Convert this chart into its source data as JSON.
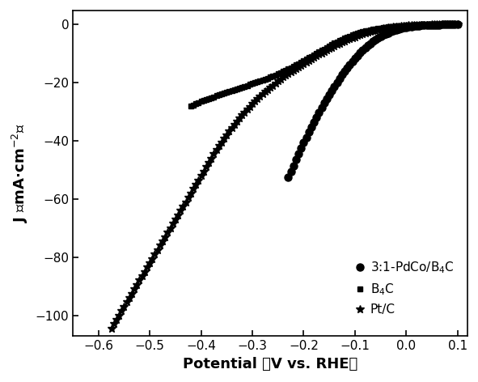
{
  "xlabel": "Potential （V vs. RHE）",
  "ylabel": "J （mA·cm⁻²）",
  "xlim": [
    -0.65,
    0.12
  ],
  "ylim": [
    -107,
    5
  ],
  "xticks": [
    -0.6,
    -0.5,
    -0.4,
    -0.3,
    -0.2,
    -0.1,
    0.0,
    0.1
  ],
  "yticks": [
    0,
    -20,
    -40,
    -60,
    -80,
    -100
  ],
  "background_color": "#ffffff",
  "series": [
    {
      "label": "3:1-PdCo/B$_4$C",
      "marker": "o",
      "markersize": 6.5,
      "color": "#000000",
      "x": [
        -0.23,
        -0.225,
        -0.22,
        -0.215,
        -0.21,
        -0.205,
        -0.2,
        -0.195,
        -0.19,
        -0.185,
        -0.18,
        -0.175,
        -0.17,
        -0.165,
        -0.16,
        -0.155,
        -0.15,
        -0.145,
        -0.14,
        -0.135,
        -0.13,
        -0.125,
        -0.12,
        -0.115,
        -0.11,
        -0.105,
        -0.1,
        -0.095,
        -0.09,
        -0.085,
        -0.08,
        -0.075,
        -0.07,
        -0.065,
        -0.06,
        -0.055,
        -0.05,
        -0.045,
        -0.04,
        -0.035,
        -0.03,
        -0.025,
        -0.02,
        -0.015,
        -0.01,
        -0.005,
        0.0,
        0.005,
        0.01,
        0.015,
        0.02,
        0.025,
        0.03,
        0.035,
        0.04,
        0.045,
        0.05,
        0.055,
        0.06,
        0.065,
        0.07,
        0.075,
        0.08,
        0.085,
        0.09,
        0.095,
        0.1
      ],
      "y": [
        -52.5,
        -50.5,
        -48.5,
        -46.5,
        -44.5,
        -42.5,
        -40.5,
        -38.8,
        -37.0,
        -35.2,
        -33.5,
        -31.8,
        -30.2,
        -28.6,
        -27.0,
        -25.5,
        -24.0,
        -22.6,
        -21.2,
        -19.8,
        -18.5,
        -17.2,
        -16.0,
        -14.8,
        -13.7,
        -12.6,
        -11.6,
        -10.6,
        -9.7,
        -8.8,
        -8.0,
        -7.2,
        -6.5,
        -5.8,
        -5.2,
        -4.6,
        -4.1,
        -3.6,
        -3.2,
        -2.8,
        -2.4,
        -2.1,
        -1.8,
        -1.5,
        -1.3,
        -1.1,
        -0.9,
        -0.75,
        -0.62,
        -0.51,
        -0.41,
        -0.33,
        -0.26,
        -0.2,
        -0.15,
        -0.11,
        -0.08,
        -0.05,
        -0.03,
        -0.02,
        -0.01,
        -0.01,
        0.0,
        0.0,
        0.0,
        0.0,
        0.0
      ]
    },
    {
      "label": "B$_4$C",
      "marker": "s",
      "markersize": 5,
      "color": "#000000",
      "x": [
        -0.42,
        -0.415,
        -0.41,
        -0.405,
        -0.4,
        -0.395,
        -0.39,
        -0.385,
        -0.38,
        -0.375,
        -0.37,
        -0.365,
        -0.36,
        -0.355,
        -0.35,
        -0.345,
        -0.34,
        -0.335,
        -0.33,
        -0.325,
        -0.32,
        -0.315,
        -0.31,
        -0.305,
        -0.3,
        -0.295,
        -0.29,
        -0.285,
        -0.28,
        -0.275,
        -0.27,
        -0.265,
        -0.26,
        -0.255,
        -0.25,
        -0.245,
        -0.24,
        -0.235,
        -0.23,
        -0.225,
        -0.22,
        -0.215,
        -0.21,
        -0.205,
        -0.2,
        -0.195,
        -0.19,
        -0.185,
        -0.18,
        -0.175,
        -0.17,
        -0.165,
        -0.16,
        -0.155,
        -0.15,
        -0.145,
        -0.14,
        -0.135,
        -0.13,
        -0.125,
        -0.12,
        -0.115,
        -0.11,
        -0.105,
        -0.1,
        -0.095,
        -0.09,
        -0.085,
        -0.08,
        -0.075,
        -0.07,
        -0.065,
        -0.06,
        -0.055,
        -0.05,
        -0.045,
        -0.04,
        -0.035,
        -0.03,
        -0.025,
        -0.02,
        -0.015,
        -0.01,
        -0.005,
        0.0,
        0.005,
        0.01,
        0.015,
        0.02,
        0.025,
        0.03,
        0.035,
        0.04,
        0.045,
        0.05,
        0.055,
        0.06,
        0.065,
        0.07,
        0.075,
        0.08,
        0.085,
        0.09,
        0.095,
        0.1
      ],
      "y": [
        -28.0,
        -27.6,
        -27.2,
        -26.8,
        -26.4,
        -26.0,
        -25.7,
        -25.4,
        -25.1,
        -24.8,
        -24.5,
        -24.2,
        -23.9,
        -23.6,
        -23.3,
        -23.0,
        -22.7,
        -22.4,
        -22.1,
        -21.8,
        -21.5,
        -21.2,
        -20.9,
        -20.6,
        -20.3,
        -20.0,
        -19.7,
        -19.4,
        -19.1,
        -18.8,
        -18.5,
        -18.1,
        -17.7,
        -17.3,
        -16.9,
        -16.5,
        -16.1,
        -15.7,
        -15.3,
        -14.9,
        -14.4,
        -13.9,
        -13.4,
        -12.9,
        -12.4,
        -11.9,
        -11.4,
        -10.9,
        -10.4,
        -9.9,
        -9.4,
        -8.9,
        -8.4,
        -7.9,
        -7.4,
        -6.9,
        -6.4,
        -5.95,
        -5.5,
        -5.1,
        -4.7,
        -4.3,
        -3.95,
        -3.6,
        -3.3,
        -3.0,
        -2.72,
        -2.46,
        -2.22,
        -2.0,
        -1.8,
        -1.62,
        -1.45,
        -1.3,
        -1.16,
        -1.03,
        -0.91,
        -0.8,
        -0.7,
        -0.61,
        -0.53,
        -0.45,
        -0.38,
        -0.32,
        -0.27,
        -0.22,
        -0.18,
        -0.14,
        -0.11,
        -0.09,
        -0.07,
        -0.05,
        -0.04,
        -0.03,
        -0.02,
        -0.01,
        -0.01,
        -0.01,
        0.0,
        0.0,
        0.0,
        0.0,
        0.0,
        0.0,
        0.0
      ]
    },
    {
      "label": "Pt/C",
      "marker": "*",
      "markersize": 7,
      "color": "#000000",
      "x": [
        -0.575,
        -0.57,
        -0.565,
        -0.56,
        -0.555,
        -0.55,
        -0.545,
        -0.54,
        -0.535,
        -0.53,
        -0.525,
        -0.52,
        -0.515,
        -0.51,
        -0.505,
        -0.5,
        -0.495,
        -0.49,
        -0.485,
        -0.48,
        -0.475,
        -0.47,
        -0.465,
        -0.46,
        -0.455,
        -0.45,
        -0.445,
        -0.44,
        -0.435,
        -0.43,
        -0.425,
        -0.42,
        -0.415,
        -0.41,
        -0.405,
        -0.4,
        -0.395,
        -0.39,
        -0.385,
        -0.38,
        -0.375,
        -0.37,
        -0.365,
        -0.36,
        -0.355,
        -0.35,
        -0.345,
        -0.34,
        -0.335,
        -0.33,
        -0.325,
        -0.32,
        -0.315,
        -0.31,
        -0.305,
        -0.3,
        -0.295,
        -0.29,
        -0.285,
        -0.28,
        -0.275,
        -0.27,
        -0.265,
        -0.26,
        -0.255,
        -0.25,
        -0.245,
        -0.24,
        -0.235,
        -0.23,
        -0.225,
        -0.22,
        -0.215,
        -0.21,
        -0.205,
        -0.2,
        -0.195,
        -0.19,
        -0.185,
        -0.18,
        -0.175,
        -0.17,
        -0.165,
        -0.16,
        -0.155,
        -0.15,
        -0.145,
        -0.14,
        -0.135,
        -0.13,
        -0.125,
        -0.12,
        -0.115,
        -0.11,
        -0.105,
        -0.1,
        -0.095,
        -0.09,
        -0.085,
        -0.08,
        -0.075,
        -0.07,
        -0.065,
        -0.06,
        -0.055,
        -0.05,
        -0.045,
        -0.04,
        -0.035,
        -0.03,
        -0.025,
        -0.02,
        -0.015,
        -0.01,
        -0.005,
        0.0,
        0.005,
        0.01,
        0.015,
        0.02,
        0.025,
        0.03,
        0.035,
        0.04,
        0.045,
        0.05,
        0.055,
        0.06,
        0.065,
        0.07,
        0.075,
        0.08,
        0.085,
        0.09,
        0.095,
        0.1
      ],
      "y": [
        -104.5,
        -103.0,
        -101.5,
        -100.0,
        -98.5,
        -97.0,
        -95.5,
        -94.0,
        -92.5,
        -91.0,
        -89.5,
        -88.0,
        -86.5,
        -85.0,
        -83.5,
        -82.0,
        -80.5,
        -79.0,
        -77.5,
        -76.0,
        -74.5,
        -73.0,
        -71.5,
        -70.0,
        -68.5,
        -67.0,
        -65.5,
        -64.0,
        -62.5,
        -61.0,
        -59.5,
        -58.0,
        -56.5,
        -55.0,
        -53.5,
        -52.0,
        -50.5,
        -49.0,
        -47.5,
        -46.0,
        -44.5,
        -43.0,
        -41.7,
        -40.4,
        -39.1,
        -37.9,
        -36.7,
        -35.5,
        -34.4,
        -33.3,
        -32.2,
        -31.2,
        -30.2,
        -29.2,
        -28.2,
        -27.3,
        -26.4,
        -25.5,
        -24.7,
        -23.9,
        -23.1,
        -22.3,
        -21.6,
        -20.9,
        -20.2,
        -19.5,
        -18.8,
        -18.1,
        -17.5,
        -16.9,
        -16.3,
        -15.7,
        -15.1,
        -14.5,
        -13.95,
        -13.4,
        -12.85,
        -12.3,
        -11.8,
        -11.3,
        -10.8,
        -10.3,
        -9.8,
        -9.3,
        -8.8,
        -8.3,
        -7.85,
        -7.4,
        -6.95,
        -6.5,
        -6.1,
        -5.7,
        -5.3,
        -4.95,
        -4.6,
        -4.25,
        -3.9,
        -3.6,
        -3.3,
        -3.0,
        -2.72,
        -2.46,
        -2.22,
        -1.99,
        -1.78,
        -1.58,
        -1.4,
        -1.23,
        -1.07,
        -0.93,
        -0.8,
        -0.68,
        -0.57,
        -0.48,
        -0.39,
        -0.32,
        -0.26,
        -0.2,
        -0.16,
        -0.12,
        -0.09,
        -0.07,
        -0.05,
        -0.03,
        -0.02,
        -0.01,
        -0.01,
        0.0,
        0.0,
        0.0,
        0.0,
        0.0,
        0.0,
        0.0,
        0.0,
        0.0
      ]
    }
  ]
}
